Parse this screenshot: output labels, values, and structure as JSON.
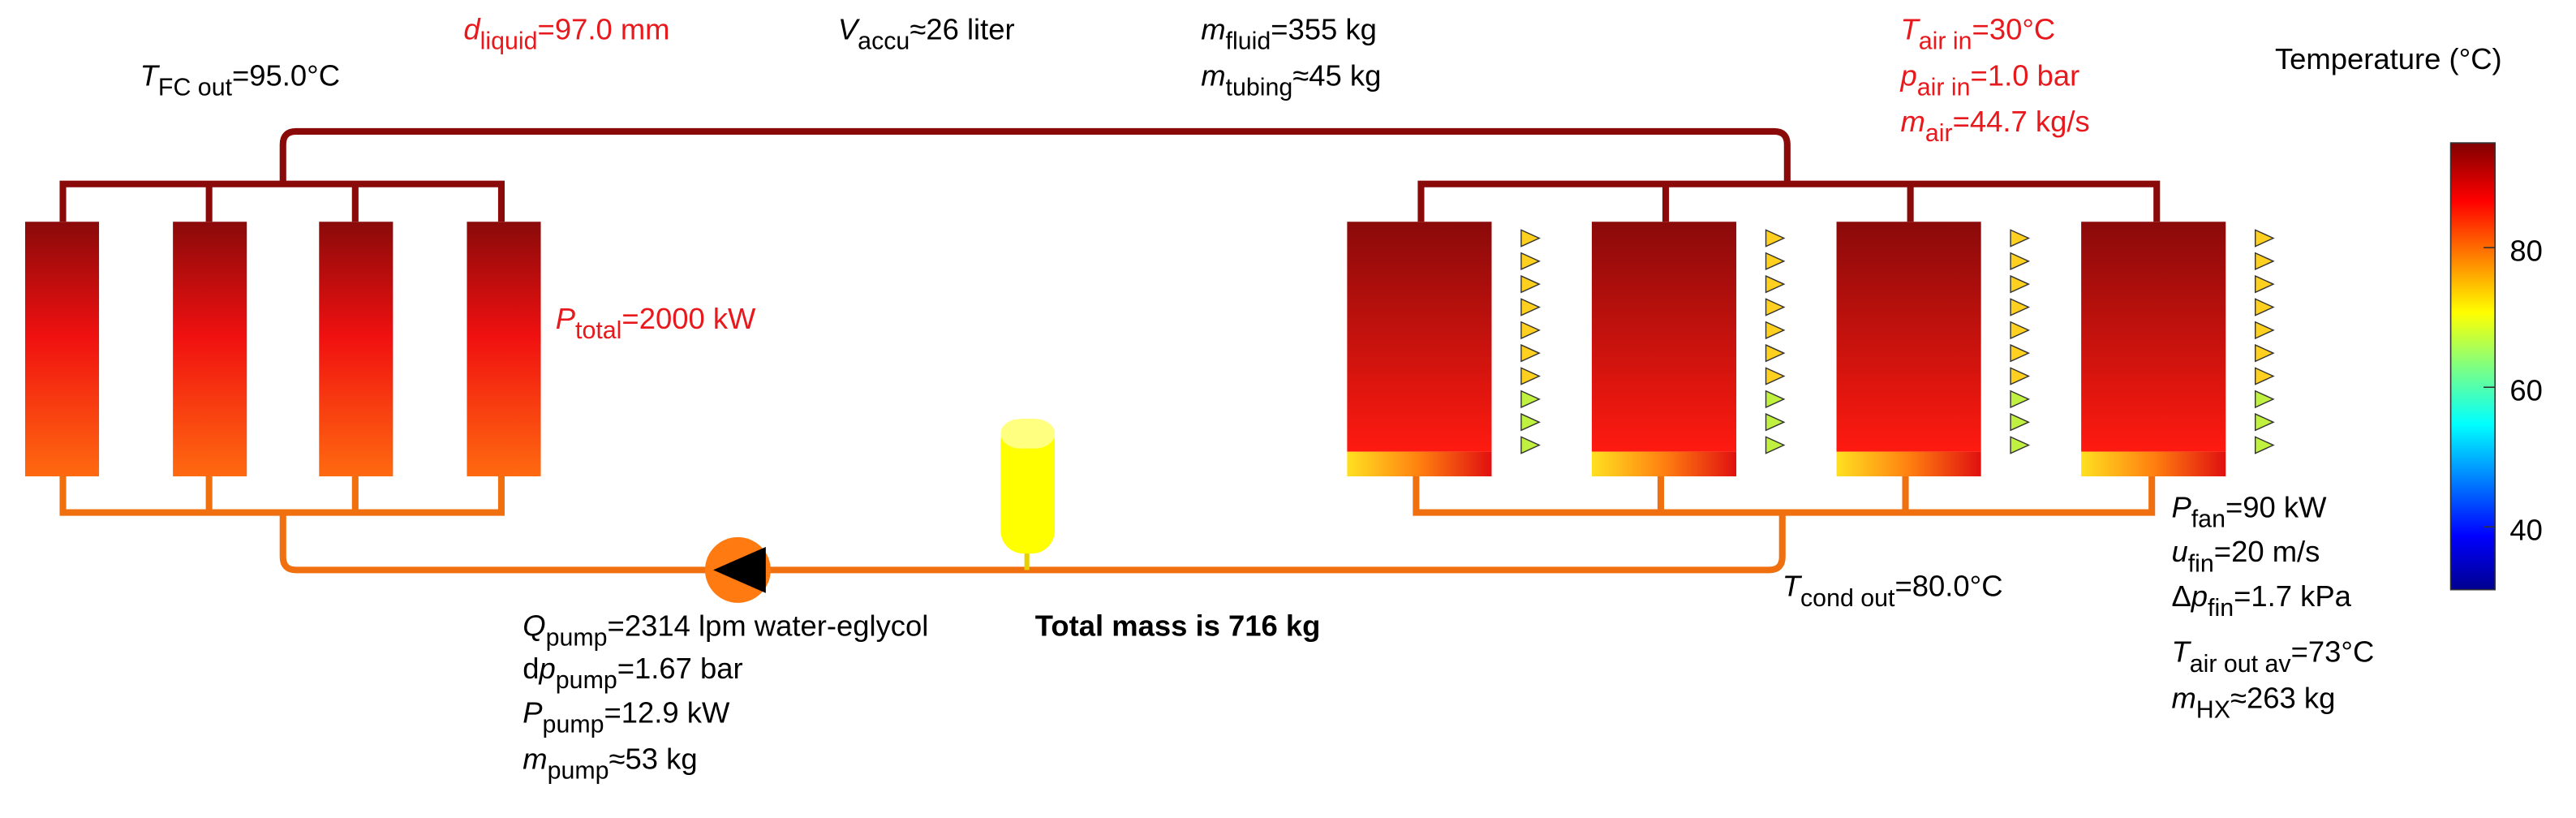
{
  "labels": [
    {
      "symbol": "T",
      "sub": "FC out",
      "text": "=95.0°C"
    },
    {
      "symbol": "d",
      "sub": "liquid",
      "text": "=97.0 mm"
    },
    {
      "symbol": "V",
      "sub": "accu",
      "text": "≈26 liter"
    },
    {
      "symbol": "m",
      "sub": "fluid",
      "text": "=355 kg"
    },
    {
      "symbol": "m",
      "sub": "tubing",
      "text": "≈45 kg"
    },
    {
      "symbol": "T",
      "sub": "air in",
      "text": "=30°C"
    },
    {
      "symbol": "p",
      "sub": "air in",
      "text": "=1.0 bar"
    },
    {
      "symbol": "m",
      "sub": "air",
      "text": "=44.7 kg/s"
    },
    {
      "symbol": "P",
      "sub": "total",
      "text": "=2000 kW"
    },
    {
      "symbol": "Q",
      "sub": "pump",
      "text": "=2314 lpm water-eglycol"
    },
    {
      "prefix": "d",
      "symbol": "p",
      "sub": "pump",
      "text": "=1.67 bar"
    },
    {
      "symbol": "P",
      "sub": "pump",
      "text": "=12.9 kW"
    },
    {
      "symbol": "m",
      "sub": "pump",
      "text": "≈53 kg"
    },
    {
      "symbol": "T",
      "sub": "cond out",
      "text": "=80.0°C"
    },
    {
      "symbol": "P",
      "sub": "fan",
      "text": "=90 kW"
    },
    {
      "symbol": "u",
      "sub": "fin",
      "text": "=20 m/s"
    },
    {
      "prefix": "Δ",
      "symbol": "p",
      "sub": "fin",
      "text": "=1.7 kPa"
    },
    {
      "symbol": "T",
      "sub": "air out av",
      "text": "=73°C"
    },
    {
      "symbol": "m",
      "sub": "HX",
      "text": "≈263 kg"
    }
  ],
  "total_mass": "Total mass is 716 kg",
  "colorbar": {
    "title": "Temperature (°C)",
    "lim": [
      31,
      95
    ],
    "ticks": [
      40,
      60,
      80
    ]
  }
}
